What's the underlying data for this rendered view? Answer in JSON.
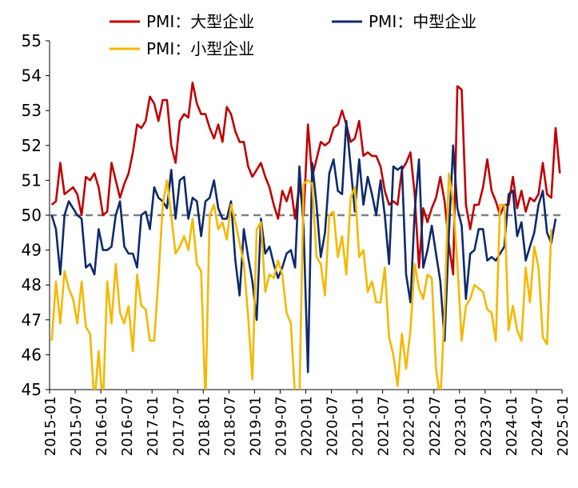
{
  "chart_data": {
    "type": "line",
    "title": "",
    "xlabel": "",
    "ylabel": "",
    "ylim": [
      45,
      55
    ],
    "yticks": [
      45,
      46,
      47,
      48,
      49,
      50,
      51,
      52,
      53,
      54,
      55
    ],
    "x_start": "2015-01",
    "x_tick_labels": [
      "2015-01",
      "2015-07",
      "2016-01",
      "2016-07",
      "2017-01",
      "2017-07",
      "2018-01",
      "2018-07",
      "2019-01",
      "2019-07",
      "2020-01",
      "2020-07",
      "2021-01",
      "2021-07",
      "2022-01",
      "2022-07",
      "2023-01",
      "2023-07",
      "2024-01",
      "2024-07",
      "2025-01"
    ],
    "reference_line": 50,
    "legend_position": "top",
    "colors": {
      "large": "#c00000",
      "medium": "#0d2a6b",
      "small": "#f5b800",
      "reference": "#808080"
    },
    "series": [
      {
        "name": "PMI：大型企业",
        "values": [
          50.3,
          50.4,
          51.5,
          50.6,
          50.7,
          50.8,
          50.6,
          50.0,
          51.1,
          51.0,
          51.2,
          50.8,
          50.0,
          50.1,
          51.5,
          51.0,
          50.5,
          50.9,
          51.2,
          51.8,
          52.6,
          52.5,
          52.7,
          53.4,
          53.2,
          52.7,
          53.3,
          53.3,
          52.0,
          51.5,
          52.7,
          52.9,
          52.8,
          53.8,
          53.2,
          52.9,
          52.9,
          52.5,
          52.2,
          52.6,
          52.1,
          53.1,
          52.9,
          52.4,
          52.1,
          52.1,
          51.4,
          51.1,
          51.3,
          51.5,
          51.1,
          50.8,
          50.3,
          49.9,
          50.7,
          50.4,
          50.8,
          49.9,
          50.9,
          50.0,
          52.6,
          51.1,
          51.6,
          52.1,
          52.0,
          52.1,
          52.5,
          52.6,
          53.0,
          52.6,
          52.1,
          52.2,
          52.7,
          51.7,
          51.8,
          51.7,
          51.7,
          51.4,
          50.7,
          50.3,
          50.4,
          50.3,
          51.3,
          51.5,
          51.8,
          50.6,
          48.5,
          50.2,
          49.8,
          50.2,
          50.5,
          51.1,
          50.4,
          49.2,
          48.3,
          53.7,
          53.6,
          50.3,
          49.6,
          50.3,
          50.3,
          50.8,
          51.6,
          50.7,
          50.4,
          50.0,
          50.3,
          50.3,
          51.1,
          50.2,
          50.7,
          50.1,
          50.5,
          50.4,
          50.6,
          51.5,
          50.6,
          50.5,
          52.5,
          51.2
        ]
      },
      {
        "name": "PMI：中型企业",
        "values": [
          50.0,
          49.6,
          48.3,
          50.0,
          50.4,
          50.2,
          50.0,
          49.9,
          48.5,
          48.6,
          48.3,
          49.6,
          49.0,
          49.0,
          49.1,
          50.0,
          50.4,
          49.1,
          48.9,
          48.9,
          48.5,
          50.0,
          50.1,
          49.6,
          50.8,
          50.5,
          50.4,
          50.2,
          51.3,
          49.9,
          51.0,
          51.1,
          49.9,
          50.5,
          50.4,
          49.4,
          50.4,
          50.5,
          51.0,
          50.2,
          49.9,
          49.9,
          50.4,
          48.7,
          47.7,
          49.6,
          48.8,
          48.1,
          47.0,
          49.9,
          48.9,
          49.1,
          48.6,
          48.2,
          48.5,
          48.9,
          49.0,
          48.5,
          51.4,
          49.6,
          45.5,
          51.5,
          50.3,
          48.8,
          49.5,
          51.2,
          51.6,
          50.7,
          50.6,
          52.7,
          51.4,
          50.1,
          51.6,
          50.3,
          51.1,
          50.6,
          50.0,
          51.0,
          50.0,
          48.6,
          51.4,
          51.3,
          51.4,
          48.3,
          47.5,
          50.1,
          51.6,
          48.5,
          49.0,
          49.7,
          48.9,
          48.1,
          46.4,
          49.4,
          52.0,
          50.2,
          49.7,
          47.6,
          48.9,
          49.0,
          49.6,
          49.6,
          48.7,
          48.8,
          48.7,
          48.9,
          49.1,
          50.6,
          50.7,
          49.4,
          49.8,
          48.7,
          49.1,
          49.5,
          50.3,
          50.7,
          49.5,
          49.2,
          49.9
        ]
      },
      {
        "name": "PMI：小型企业",
        "values": [
          46.4,
          48.1,
          46.9,
          48.4,
          47.9,
          47.6,
          46.9,
          48.1,
          46.8,
          46.6,
          44.6,
          46.1,
          44.5,
          48.1,
          46.9,
          48.6,
          47.2,
          46.9,
          47.4,
          46.1,
          48.3,
          47.4,
          47.3,
          46.4,
          46.4,
          48.2,
          50.3,
          51.0,
          50.0,
          48.9,
          49.1,
          49.4,
          49.0,
          49.9,
          48.6,
          48.4,
          44.6,
          50.0,
          50.3,
          49.6,
          49.8,
          49.3,
          50.3,
          49.8,
          49.2,
          48.6,
          47.1,
          45.3,
          49.6,
          49.8,
          47.8,
          48.3,
          48.2,
          48.7,
          48.3,
          47.2,
          46.9,
          44.8,
          44.7,
          50.9,
          51.0,
          50.9,
          48.8,
          48.6,
          47.7,
          50.0,
          50.1,
          48.8,
          49.4,
          48.3,
          50.5,
          50.8,
          48.8,
          49.0,
          47.8,
          48.1,
          47.5,
          47.5,
          48.5,
          46.5,
          46.0,
          45.1,
          46.6,
          45.6,
          46.7,
          48.6,
          47.9,
          47.6,
          48.3,
          48.2,
          45.6,
          44.7,
          47.2,
          51.2,
          50.4,
          48.6,
          46.4,
          47.4,
          47.6,
          48.0,
          47.9,
          47.8,
          47.3,
          47.2,
          46.4,
          50.3,
          50.3,
          46.7,
          47.4,
          46.7,
          46.4,
          48.5,
          47.5,
          49.1,
          48.5,
          46.5,
          46.3,
          49.6
        ]
      }
    ]
  }
}
